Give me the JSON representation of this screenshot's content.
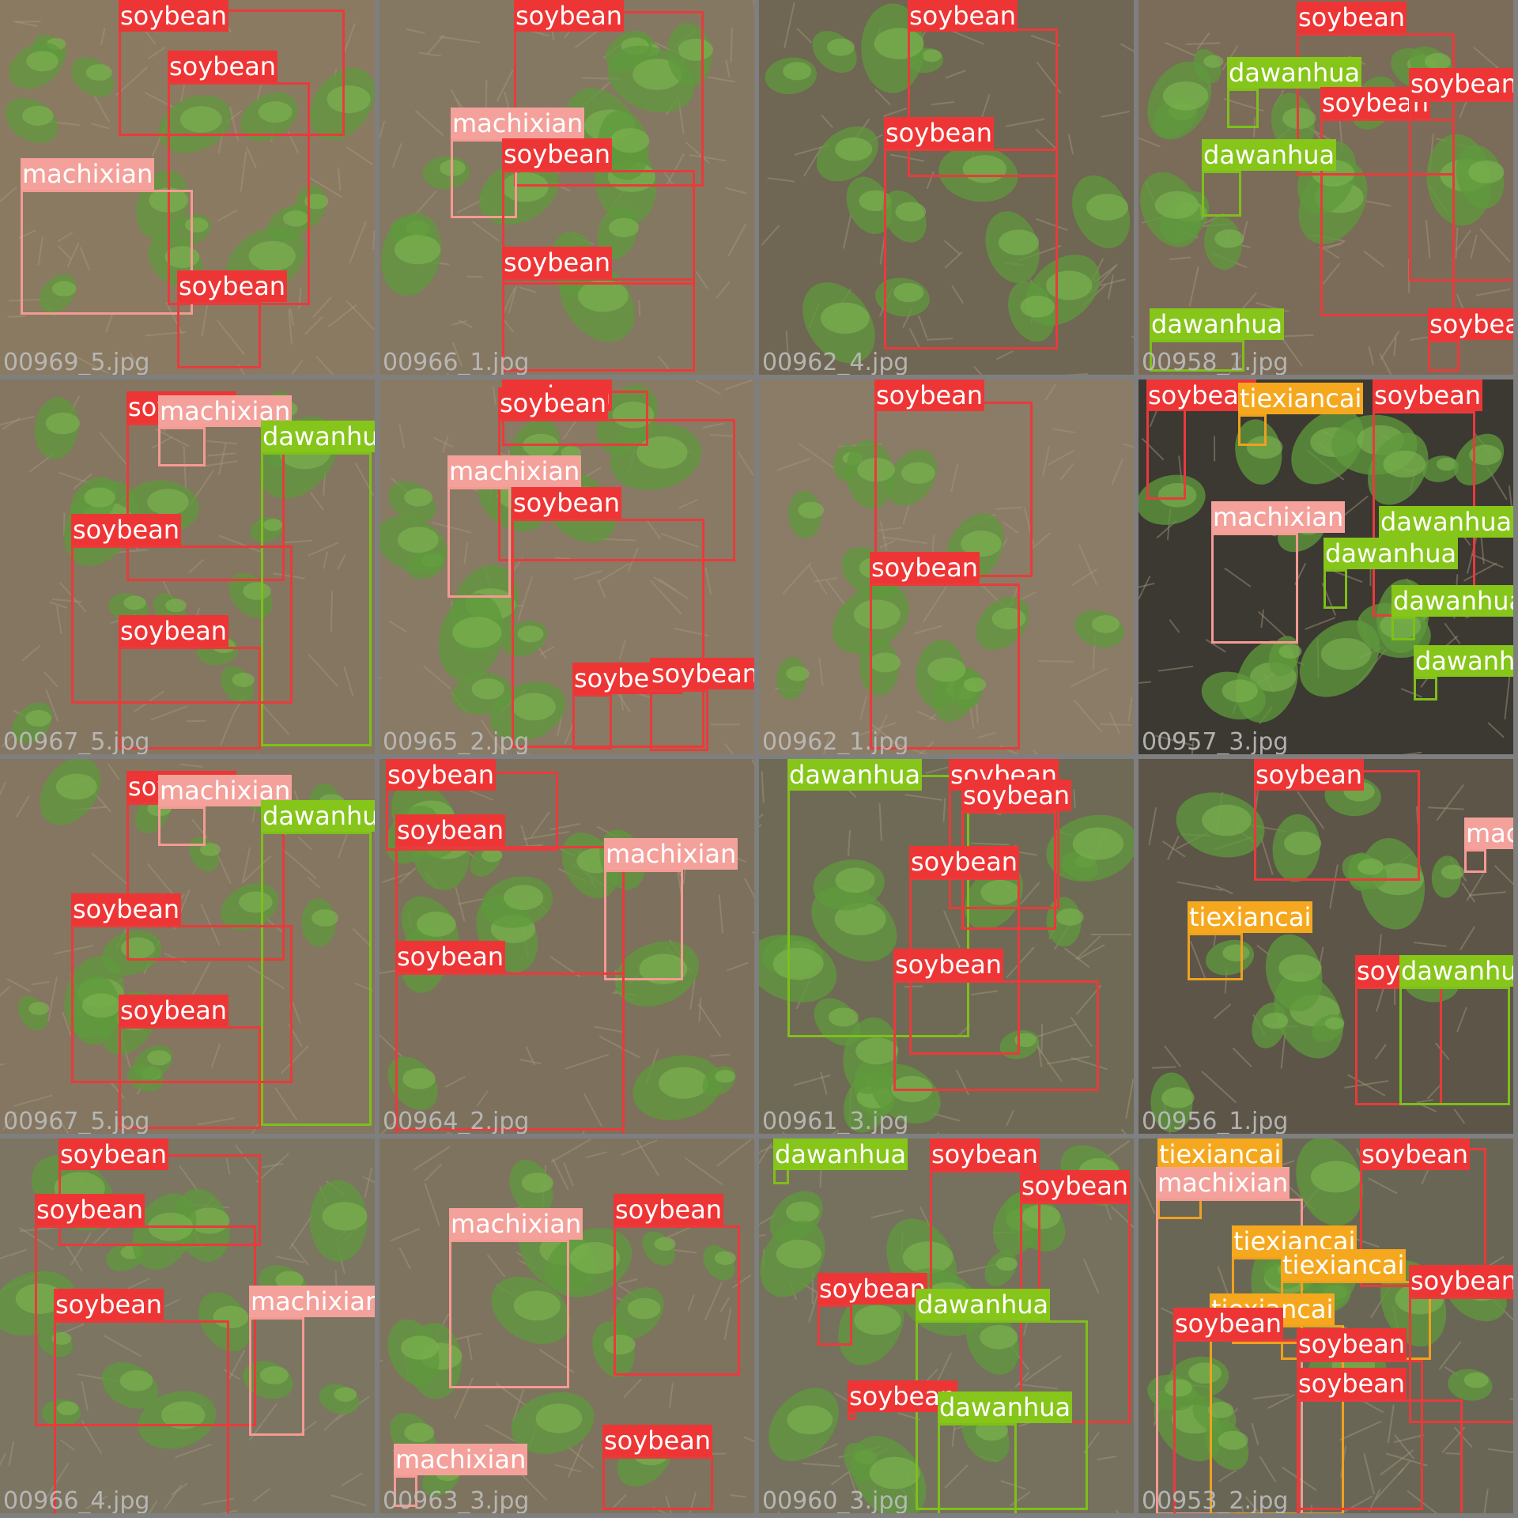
{
  "colors": {
    "soybean": "#ee3535",
    "machixian": "#f4a19b",
    "dawanhua": "#86c519",
    "tiexiancai": "#f5a81e",
    "background": "#7f7f7f"
  },
  "tiles": [
    {
      "filename": "00969_5.jpg",
      "labels": [
        "soybean",
        "soybean",
        "machixian",
        "soybean"
      ]
    },
    {
      "filename": "00966_1.jpg",
      "labels": [
        "soybean",
        "machixian",
        "soybean",
        "soybean"
      ]
    },
    {
      "filename": "00962_4.jpg",
      "labels": [
        "soybean",
        "soybean"
      ]
    },
    {
      "filename": "00958_1.jpg",
      "labels": [
        "soybean",
        "dawanhua",
        "soybean",
        "dawanhua",
        "soybean",
        "dawanhua",
        "soybean"
      ]
    },
    {
      "filename": "00967_5.jpg",
      "labels": [
        "soybean",
        "machixian",
        "dawanhua",
        "soybean",
        "soybean"
      ]
    },
    {
      "filename": "00965_2.jpg",
      "labels": [
        "soybean",
        "soybean",
        "machixian",
        "soybean",
        "soybean",
        "soybean"
      ]
    },
    {
      "filename": "00962_1.jpg",
      "labels": [
        "soybean",
        "soybean"
      ]
    },
    {
      "filename": "00957_3.jpg",
      "labels": [
        "soybean",
        "tiexiancai",
        "soybean",
        "machixian",
        "dawanhua",
        "dawanhua",
        "dawanhua",
        "dawanhua"
      ]
    },
    {
      "filename": "00967_5.jpg",
      "labels": [
        "soybean",
        "machixian",
        "dawanhua",
        "soybean",
        "soybean"
      ]
    },
    {
      "filename": "00964_2.jpg",
      "labels": [
        "soybean",
        "soybean",
        "machixian",
        "soybean"
      ]
    },
    {
      "filename": "00961_3.jpg",
      "labels": [
        "dawanhua",
        "soybean",
        "soybean",
        "soybean",
        "soybean"
      ]
    },
    {
      "filename": "00956_1.jpg",
      "labels": [
        "soybean",
        "machixian",
        "tiexiancai",
        "soybean",
        "dawanhua"
      ]
    },
    {
      "filename": "00966_4.jpg",
      "labels": [
        "soybean",
        "soybean",
        "soybean",
        "machixian"
      ]
    },
    {
      "filename": "00963_3.jpg",
      "labels": [
        "machixian",
        "soybean",
        "machixian",
        "soybean"
      ]
    },
    {
      "filename": "00960_3.jpg",
      "labels": [
        "dawanhua",
        "soybean",
        "soybean",
        "soybean",
        "dawanhua",
        "soybean",
        "dawanhua"
      ]
    },
    {
      "filename": "00953_2.jpg",
      "labels": [
        "tiexiancai",
        "soybean",
        "machixian",
        "tiexiancai",
        "tiexiancai",
        "soybean",
        "tiexiancai",
        "soybean",
        "soybean",
        "soybean"
      ]
    }
  ]
}
